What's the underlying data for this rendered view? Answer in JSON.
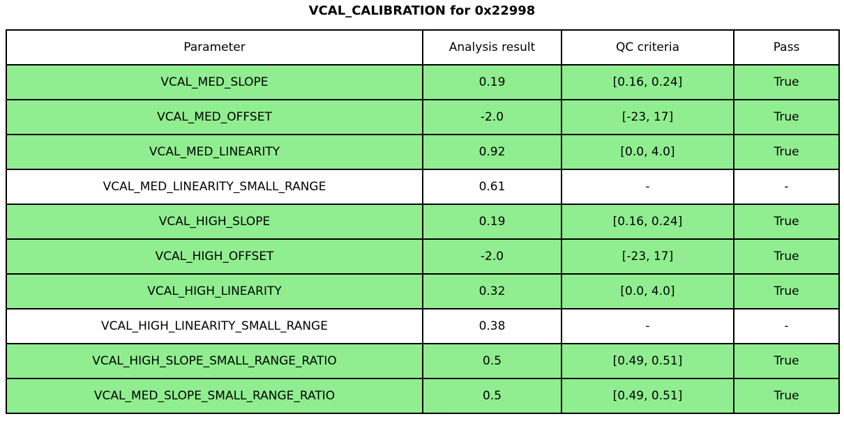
{
  "title": "VCAL_CALIBRATION for 0x22998",
  "colors": {
    "pass_green": "#90EE90",
    "row_white": "#FFFFFF",
    "border": "#000000",
    "text": "#000000"
  },
  "table": {
    "headers": [
      "Parameter",
      "Analysis result",
      "QC criteria",
      "Pass"
    ],
    "rows": [
      {
        "parameter": "VCAL_MED_SLOPE",
        "result": "0.19",
        "criteria": "[0.16, 0.24]",
        "pass": "True",
        "highlight": true
      },
      {
        "parameter": "VCAL_MED_OFFSET",
        "result": "-2.0",
        "criteria": "[-23, 17]",
        "pass": "True",
        "highlight": true
      },
      {
        "parameter": "VCAL_MED_LINEARITY",
        "result": "0.92",
        "criteria": "[0.0, 4.0]",
        "pass": "True",
        "highlight": true
      },
      {
        "parameter": "VCAL_MED_LINEARITY_SMALL_RANGE",
        "result": "0.61",
        "criteria": "-",
        "pass": "-",
        "highlight": false
      },
      {
        "parameter": "VCAL_HIGH_SLOPE",
        "result": "0.19",
        "criteria": "[0.16, 0.24]",
        "pass": "True",
        "highlight": true
      },
      {
        "parameter": "VCAL_HIGH_OFFSET",
        "result": "-2.0",
        "criteria": "[-23, 17]",
        "pass": "True",
        "highlight": true
      },
      {
        "parameter": "VCAL_HIGH_LINEARITY",
        "result": "0.32",
        "criteria": "[0.0, 4.0]",
        "pass": "True",
        "highlight": true
      },
      {
        "parameter": "VCAL_HIGH_LINEARITY_SMALL_RANGE",
        "result": "0.38",
        "criteria": "-",
        "pass": "-",
        "highlight": false
      },
      {
        "parameter": "VCAL_HIGH_SLOPE_SMALL_RANGE_RATIO",
        "result": "0.5",
        "criteria": "[0.49, 0.51]",
        "pass": "True",
        "highlight": true
      },
      {
        "parameter": "VCAL_MED_SLOPE_SMALL_RANGE_RATIO",
        "result": "0.5",
        "criteria": "[0.49, 0.51]",
        "pass": "True",
        "highlight": true
      }
    ]
  },
  "chart_data": {
    "type": "table",
    "title": "VCAL_CALIBRATION for 0x22998",
    "columns": [
      "Parameter",
      "Analysis result",
      "QC criteria",
      "Pass"
    ],
    "rows": [
      [
        "VCAL_MED_SLOPE",
        "0.19",
        "[0.16, 0.24]",
        "True"
      ],
      [
        "VCAL_MED_OFFSET",
        "-2.0",
        "[-23, 17]",
        "True"
      ],
      [
        "VCAL_MED_LINEARITY",
        "0.92",
        "[0.0, 4.0]",
        "True"
      ],
      [
        "VCAL_MED_LINEARITY_SMALL_RANGE",
        "0.61",
        "-",
        "-"
      ],
      [
        "VCAL_HIGH_SLOPE",
        "0.19",
        "[0.16, 0.24]",
        "True"
      ],
      [
        "VCAL_HIGH_OFFSET",
        "-2.0",
        "[-23, 17]",
        "True"
      ],
      [
        "VCAL_HIGH_LINEARITY",
        "0.32",
        "[0.0, 4.0]",
        "True"
      ],
      [
        "VCAL_HIGH_LINEARITY_SMALL_RANGE",
        "0.38",
        "-",
        "-"
      ],
      [
        "VCAL_HIGH_SLOPE_SMALL_RANGE_RATIO",
        "0.5",
        "[0.49, 0.51]",
        "True"
      ],
      [
        "VCAL_MED_SLOPE_SMALL_RANGE_RATIO",
        "0.5",
        "[0.49, 0.51]",
        "True"
      ]
    ],
    "row_pass_highlight": [
      true,
      true,
      true,
      false,
      true,
      true,
      true,
      false,
      true,
      true
    ],
    "layout": {
      "grid": true,
      "cell_text_align": "center",
      "title_position": "top-center"
    }
  }
}
